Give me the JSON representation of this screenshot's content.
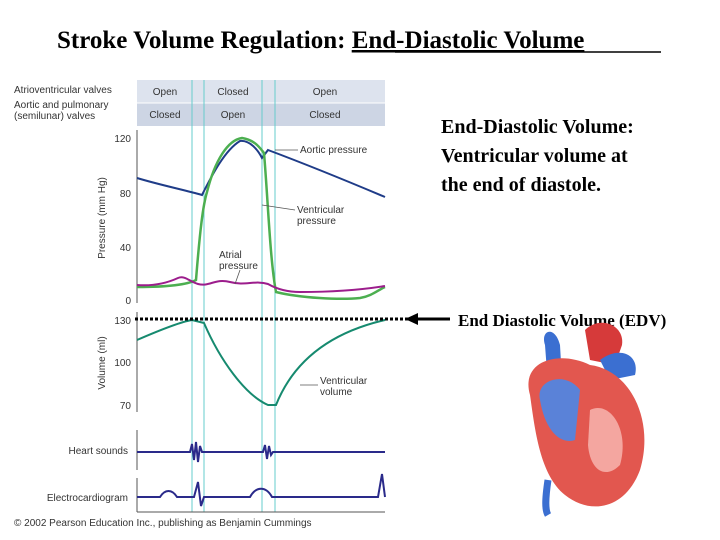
{
  "title": {
    "main": "Stroke Volume Regulation: ",
    "underlined": "End-Diastolic Volume"
  },
  "valves": {
    "rows": [
      {
        "label": [
          "Atrioventricular valves"
        ],
        "states": [
          "Open",
          "Closed",
          "Open"
        ]
      },
      {
        "label": [
          "Aortic and pulmonary",
          "(semilunar) valves"
        ],
        "states": [
          "Closed",
          "Open",
          "Closed"
        ]
      }
    ]
  },
  "pressure": {
    "axis_label": "Pressure (mm Hg)",
    "ticks": [
      "120",
      "80",
      "40",
      "0"
    ],
    "annotations": {
      "aortic": [
        "Aortic pressure"
      ],
      "ventricular": [
        "Ventricular",
        "pressure"
      ],
      "atrial": [
        "Atrial",
        "pressure"
      ]
    }
  },
  "volume": {
    "axis_label": "Volume (ml)",
    "ticks": [
      "130",
      "100",
      "70"
    ],
    "annotation": [
      "Ventricular",
      "volume"
    ]
  },
  "heart_sounds": "Heart sounds",
  "ecg": "Electrocardiogram",
  "copyright": "© 2002 Pearson Education Inc., publishing as Benjamin Cummings",
  "definition": {
    "term": "End-Diastolic Volume:",
    "lines": [
      "Ventricular volume at",
      "the end of diastole."
    ]
  },
  "edv_label": "End Diastolic Volume (EDV)"
}
